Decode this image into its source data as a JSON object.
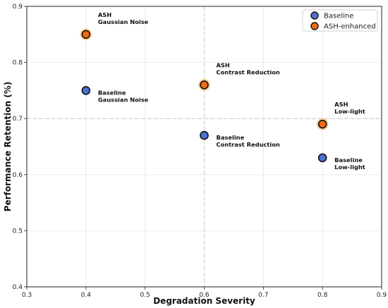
{
  "chart_data": {
    "type": "scatter",
    "title": "",
    "xlabel": "Degradation Severity",
    "ylabel": "Performance Retention (%)",
    "xlim": [
      0.3,
      0.9
    ],
    "ylim": [
      0.4,
      0.9
    ],
    "xticks": [
      "0.3",
      "0.4",
      "0.5",
      "0.6",
      "0.7",
      "0.8",
      "0.9"
    ],
    "yticks": [
      "0.4",
      "0.5",
      "0.6",
      "0.7",
      "0.8",
      "0.9"
    ],
    "grid": true,
    "legend_position": "top-right",
    "series": [
      {
        "name": "Baseline",
        "color": "#4f72d1",
        "points": [
          {
            "x": 0.4,
            "y": 0.75,
            "label": [
              "Baseline",
              "Gaussian Noise"
            ]
          },
          {
            "x": 0.6,
            "y": 0.67,
            "label": [
              "Baseline",
              "Contrast Reduction"
            ]
          },
          {
            "x": 0.8,
            "y": 0.63,
            "label": [
              "Baseline",
              "Low-light"
            ]
          }
        ]
      },
      {
        "name": "ASH-enhanced",
        "color": "#ee6a14",
        "points": [
          {
            "x": 0.4,
            "y": 0.85,
            "label": [
              "ASH",
              "Gaussian Noise"
            ]
          },
          {
            "x": 0.6,
            "y": 0.76,
            "label": [
              "ASH",
              "Contrast Reduction"
            ]
          },
          {
            "x": 0.8,
            "y": 0.69,
            "label": [
              "ASH",
              "Low-light"
            ]
          }
        ]
      }
    ],
    "reference_lines": {
      "x": 0.6,
      "y": 0.7
    }
  }
}
